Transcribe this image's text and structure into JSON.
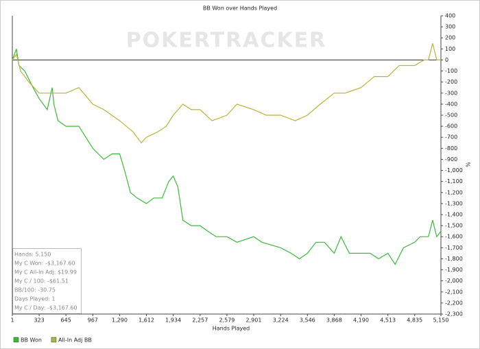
{
  "chart_data": {
    "type": "line",
    "title": "BB Won over Hands Played",
    "x_label": "Hands Played",
    "y_label": "%",
    "watermark": "POKERTRACKER",
    "legend": "bottom-left",
    "grid": false,
    "xlim": [
      1,
      5150
    ],
    "xticks": [
      1,
      323,
      645,
      967,
      {
        "value": 1290,
        "label": "1,290"
      },
      {
        "value": 1612,
        "label": "1,612"
      },
      {
        "value": 1934,
        "label": "1,934"
      },
      {
        "value": 2257,
        "label": "2,257"
      },
      {
        "value": 2579,
        "label": "2,579"
      },
      {
        "value": 2901,
        "label": "2,901"
      },
      {
        "value": 3224,
        "label": "3,224"
      },
      {
        "value": 3546,
        "label": "3,546"
      },
      {
        "value": 3868,
        "label": "3,868"
      },
      {
        "value": 4190,
        "label": "4,190"
      },
      {
        "value": 4513,
        "label": "4,513"
      },
      {
        "value": 4835,
        "label": "4,835"
      },
      {
        "value": 5150,
        "label": "5,150"
      }
    ],
    "ylim": [
      -2300,
      400
    ],
    "yticks": [
      400,
      300,
      200,
      100,
      0,
      -100,
      -200,
      -300,
      -400,
      -500,
      -600,
      -700,
      -800,
      -900,
      {
        "value": -1000,
        "label": "-1,000"
      },
      {
        "value": -1100,
        "label": "-1,100"
      },
      {
        "value": -1200,
        "label": "-1,200"
      },
      {
        "value": -1300,
        "label": "-1,300"
      },
      {
        "value": -1400,
        "label": "-1,400"
      },
      {
        "value": -1500,
        "label": "-1,500"
      },
      {
        "value": -1600,
        "label": "-1,600"
      },
      {
        "value": -1700,
        "label": "-1,700"
      },
      {
        "value": -1800,
        "label": "-1,800"
      },
      {
        "value": -1900,
        "label": "-1,900"
      },
      {
        "value": -2000,
        "label": "-2,000"
      },
      {
        "value": -2100,
        "label": "-2,100"
      },
      {
        "value": -2200,
        "label": "-2,200"
      },
      {
        "value": -2300,
        "label": "-2,300"
      }
    ],
    "annotations": [
      "Hands: 5,150",
      "My C Won: -$3,167.60",
      "My C All-In Adj: $19.99",
      "My C / 100: -$61.51",
      "BB/100: -30.75",
      "Days Played: 1",
      "My C / Day: -$3,167.60"
    ],
    "series": [
      {
        "name": "BB Won",
        "color": "#3cb83c",
        "x": [
          1,
          50,
          80,
          150,
          250,
          323,
          420,
          480,
          500,
          550,
          645,
          800,
          967,
          1100,
          1200,
          1290,
          1350,
          1420,
          1500,
          1612,
          1700,
          1800,
          1880,
          1934,
          1990,
          2050,
          2150,
          2257,
          2350,
          2450,
          2579,
          2700,
          2901,
          3000,
          3224,
          3350,
          3450,
          3546,
          3650,
          3750,
          3868,
          3950,
          4050,
          4190,
          4300,
          4400,
          4513,
          4600,
          4700,
          4835,
          4900,
          5000,
          5050,
          5100,
          5150
        ],
        "values": [
          0,
          100,
          -50,
          -100,
          -250,
          -350,
          -450,
          -250,
          -400,
          -550,
          -600,
          -600,
          -800,
          -900,
          -850,
          -850,
          -1000,
          -1200,
          -1250,
          -1300,
          -1250,
          -1250,
          -1100,
          -1050,
          -1150,
          -1450,
          -1500,
          -1500,
          -1550,
          -1600,
          -1600,
          -1650,
          -1600,
          -1650,
          -1700,
          -1750,
          -1800,
          -1750,
          -1650,
          -1650,
          -1750,
          -1600,
          -1750,
          -1750,
          -1750,
          -1800,
          -1750,
          -1850,
          -1700,
          -1650,
          -1600,
          -1600,
          -1450,
          -1600,
          -1550
        ]
      },
      {
        "name": "All-In Adj BB",
        "color": "#b5b53a",
        "x": [
          1,
          50,
          100,
          200,
          323,
          450,
          645,
          800,
          967,
          1100,
          1290,
          1450,
          1550,
          1612,
          1750,
          1850,
          1934,
          2050,
          2150,
          2257,
          2400,
          2579,
          2700,
          2901,
          3050,
          3224,
          3400,
          3546,
          3700,
          3868,
          4000,
          4190,
          4350,
          4513,
          4650,
          4835,
          4950,
          5000,
          5050,
          5100,
          5150
        ],
        "values": [
          0,
          50,
          -100,
          -200,
          -300,
          -300,
          -300,
          -250,
          -400,
          -450,
          -550,
          -650,
          -750,
          -700,
          -650,
          -600,
          -500,
          -400,
          -450,
          -450,
          -550,
          -500,
          -400,
          -450,
          -500,
          -500,
          -550,
          -500,
          -400,
          -300,
          -300,
          -250,
          -150,
          -150,
          -50,
          -50,
          0,
          0,
          150,
          0,
          0
        ]
      }
    ]
  }
}
